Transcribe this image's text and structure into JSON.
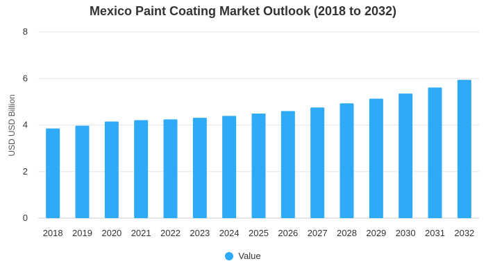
{
  "chart_data": {
    "type": "bar",
    "title": "Mexico Paint Coating Market Outlook (2018 to 2032)",
    "xlabel": "",
    "ylabel": "USD USD Billion",
    "categories": [
      "2018",
      "2019",
      "2020",
      "2021",
      "2022",
      "2023",
      "2024",
      "2025",
      "2026",
      "2027",
      "2028",
      "2029",
      "2030",
      "2031",
      "2032"
    ],
    "series": [
      {
        "name": "Value",
        "values": [
          3.85,
          3.97,
          4.15,
          4.21,
          4.24,
          4.31,
          4.39,
          4.49,
          4.6,
          4.75,
          4.93,
          5.13,
          5.35,
          5.61,
          5.94
        ]
      }
    ],
    "ylim": [
      0,
      8
    ],
    "yticks": [
      0,
      2,
      4,
      6,
      8
    ],
    "grid": true,
    "legend_position": "bottom",
    "bar_color": "#2eaaf7"
  }
}
